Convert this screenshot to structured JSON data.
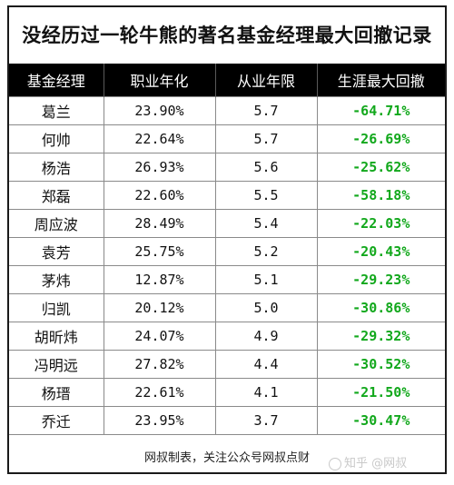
{
  "title": "没经历过一轮牛熊的著名基金经理最大回撤记录",
  "columns": [
    "基金经理",
    "职业年化",
    "从业年限",
    "生涯最大回撤"
  ],
  "rows": [
    {
      "name": "葛兰",
      "annual": "23.90%",
      "years": "5.7",
      "drawdown": "-64.71%"
    },
    {
      "name": "何帅",
      "annual": "22.64%",
      "years": "5.7",
      "drawdown": "-26.69%"
    },
    {
      "name": "杨浩",
      "annual": "26.93%",
      "years": "5.6",
      "drawdown": "-25.62%"
    },
    {
      "name": "郑磊",
      "annual": "22.60%",
      "years": "5.5",
      "drawdown": "-58.18%"
    },
    {
      "name": "周应波",
      "annual": "28.49%",
      "years": "5.4",
      "drawdown": "-22.03%"
    },
    {
      "name": "袁芳",
      "annual": "25.75%",
      "years": "5.2",
      "drawdown": "-20.43%"
    },
    {
      "name": "茅炜",
      "annual": "12.87%",
      "years": "5.1",
      "drawdown": "-29.23%"
    },
    {
      "name": "归凯",
      "annual": "20.12%",
      "years": "5.0",
      "drawdown": "-30.86%"
    },
    {
      "name": "胡昕炜",
      "annual": "24.07%",
      "years": "4.9",
      "drawdown": "-29.32%"
    },
    {
      "name": "冯明远",
      "annual": "27.82%",
      "years": "4.4",
      "drawdown": "-30.52%"
    },
    {
      "name": "杨瑨",
      "annual": "22.61%",
      "years": "4.1",
      "drawdown": "-21.50%"
    },
    {
      "name": "乔迁",
      "annual": "23.95%",
      "years": "3.7",
      "drawdown": "-30.47%"
    }
  ],
  "footer": "网叔制表，关注公众号网叔点财",
  "watermark": "知乎 @网叔",
  "colors": {
    "header_bg": "#000000",
    "header_text": "#ffffff",
    "drawdown_text": "#12a81c"
  }
}
